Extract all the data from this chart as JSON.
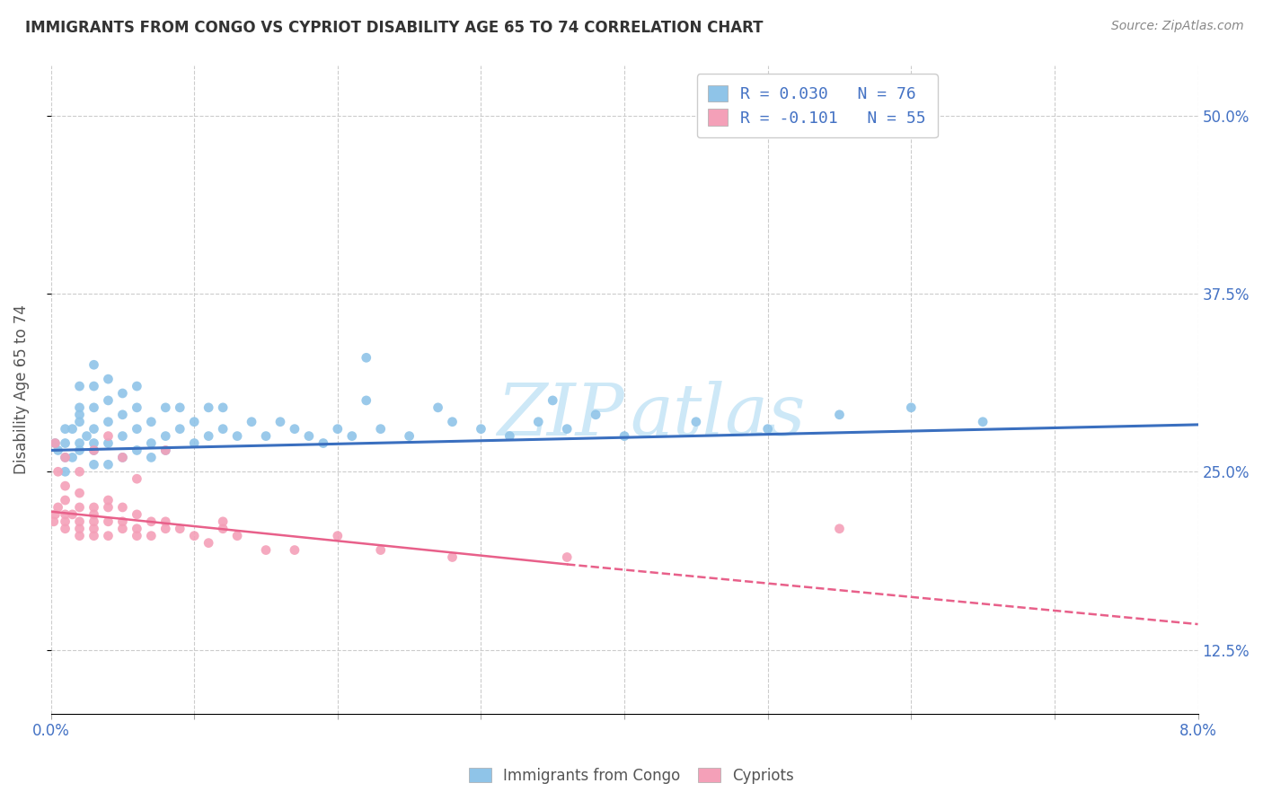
{
  "title": "IMMIGRANTS FROM CONGO VS CYPRIOT DISABILITY AGE 65 TO 74 CORRELATION CHART",
  "source_text": "Source: ZipAtlas.com",
  "ylabel": "Disability Age 65 to 74",
  "legend_entry1": "R = 0.030   N = 76",
  "legend_entry2": "R = -0.101   N = 55",
  "legend_label1": "Immigrants from Congo",
  "legend_label2": "Cypriots",
  "color_blue": "#8fc4e8",
  "color_pink": "#f4a0b8",
  "color_blue_line": "#3a6fbf",
  "color_pink_line": "#e8608a",
  "watermark_color": "#cde8f7",
  "xlim": [
    0.0,
    0.08
  ],
  "ylim": [
    0.08,
    0.535
  ],
  "yticks": [
    0.125,
    0.25,
    0.375,
    0.5
  ],
  "ytick_labels": [
    "12.5%",
    "25.0%",
    "37.5%",
    "50.0%"
  ],
  "xtick_positions": [
    0.0,
    0.01,
    0.02,
    0.03,
    0.04,
    0.05,
    0.06,
    0.07,
    0.08
  ],
  "trendline_blue_x0": 0.0,
  "trendline_blue_x1": 0.08,
  "trendline_blue_y0": 0.265,
  "trendline_blue_y1": 0.283,
  "trendline_pink_solid_x0": 0.0,
  "trendline_pink_solid_x1": 0.036,
  "trendline_pink_solid_y0": 0.222,
  "trendline_pink_solid_y1": 0.185,
  "trendline_pink_dash_x0": 0.036,
  "trendline_pink_dash_x1": 0.08,
  "trendline_pink_dash_y0": 0.185,
  "trendline_pink_dash_y1": 0.143,
  "blue_x": [
    0.0003,
    0.0005,
    0.001,
    0.001,
    0.001,
    0.001,
    0.0015,
    0.0015,
    0.002,
    0.002,
    0.002,
    0.002,
    0.002,
    0.002,
    0.0025,
    0.003,
    0.003,
    0.003,
    0.003,
    0.003,
    0.003,
    0.003,
    0.004,
    0.004,
    0.004,
    0.004,
    0.004,
    0.005,
    0.005,
    0.005,
    0.005,
    0.006,
    0.006,
    0.006,
    0.006,
    0.007,
    0.007,
    0.007,
    0.008,
    0.008,
    0.008,
    0.009,
    0.009,
    0.01,
    0.01,
    0.011,
    0.011,
    0.012,
    0.012,
    0.013,
    0.014,
    0.015,
    0.016,
    0.017,
    0.018,
    0.019,
    0.02,
    0.021,
    0.022,
    0.023,
    0.025,
    0.027,
    0.028,
    0.03,
    0.032,
    0.034,
    0.036,
    0.038,
    0.04,
    0.045,
    0.05,
    0.055,
    0.06,
    0.065,
    0.022,
    0.035
  ],
  "blue_y": [
    0.27,
    0.265,
    0.28,
    0.27,
    0.26,
    0.25,
    0.28,
    0.26,
    0.29,
    0.27,
    0.285,
    0.265,
    0.31,
    0.295,
    0.275,
    0.265,
    0.28,
    0.295,
    0.31,
    0.325,
    0.27,
    0.255,
    0.285,
    0.3,
    0.27,
    0.255,
    0.315,
    0.275,
    0.29,
    0.305,
    0.26,
    0.28,
    0.265,
    0.295,
    0.31,
    0.27,
    0.285,
    0.26,
    0.275,
    0.295,
    0.265,
    0.28,
    0.295,
    0.27,
    0.285,
    0.275,
    0.295,
    0.28,
    0.295,
    0.275,
    0.285,
    0.275,
    0.285,
    0.28,
    0.275,
    0.27,
    0.28,
    0.275,
    0.3,
    0.28,
    0.275,
    0.295,
    0.285,
    0.28,
    0.275,
    0.285,
    0.28,
    0.29,
    0.275,
    0.285,
    0.28,
    0.29,
    0.295,
    0.285,
    0.33,
    0.3
  ],
  "pink_x": [
    0.0002,
    0.0003,
    0.0005,
    0.001,
    0.001,
    0.001,
    0.001,
    0.001,
    0.0015,
    0.002,
    0.002,
    0.002,
    0.002,
    0.002,
    0.003,
    0.003,
    0.003,
    0.003,
    0.003,
    0.004,
    0.004,
    0.004,
    0.004,
    0.005,
    0.005,
    0.005,
    0.006,
    0.006,
    0.006,
    0.007,
    0.007,
    0.008,
    0.008,
    0.009,
    0.01,
    0.011,
    0.012,
    0.013,
    0.015,
    0.017,
    0.02,
    0.023,
    0.028,
    0.036,
    0.055,
    0.0003,
    0.0005,
    0.001,
    0.002,
    0.003,
    0.004,
    0.005,
    0.006,
    0.008,
    0.012
  ],
  "pink_y": [
    0.215,
    0.22,
    0.225,
    0.21,
    0.22,
    0.23,
    0.24,
    0.215,
    0.22,
    0.205,
    0.215,
    0.225,
    0.235,
    0.21,
    0.215,
    0.225,
    0.205,
    0.22,
    0.21,
    0.215,
    0.225,
    0.205,
    0.23,
    0.215,
    0.21,
    0.225,
    0.21,
    0.22,
    0.205,
    0.215,
    0.205,
    0.21,
    0.215,
    0.21,
    0.205,
    0.2,
    0.21,
    0.205,
    0.195,
    0.195,
    0.205,
    0.195,
    0.19,
    0.19,
    0.21,
    0.27,
    0.25,
    0.26,
    0.25,
    0.265,
    0.275,
    0.26,
    0.245,
    0.265,
    0.215
  ]
}
